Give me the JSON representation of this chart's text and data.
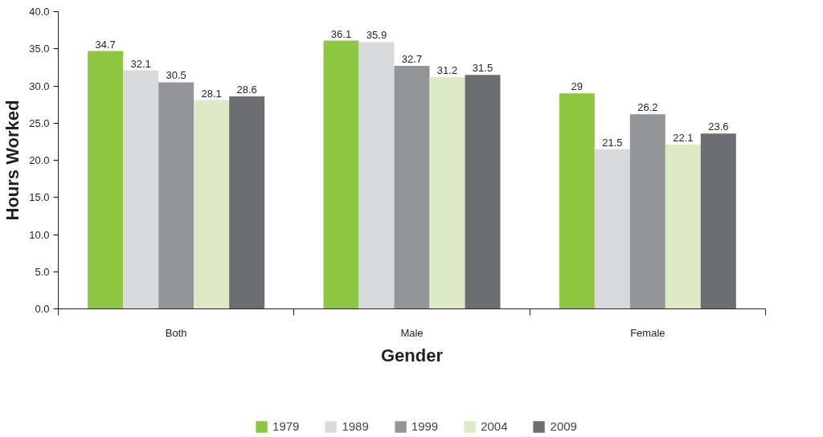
{
  "chart_data": {
    "type": "bar",
    "xlabel": "Gender",
    "ylabel": "Hours Worked",
    "categories": [
      "Both",
      "Male",
      "Female"
    ],
    "series": [
      {
        "name": "1979",
        "color": "#8dc63f",
        "values": [
          34.7,
          36.1,
          29
        ]
      },
      {
        "name": "1989",
        "color": "#d9dadc",
        "values": [
          32.1,
          35.9,
          21.5
        ]
      },
      {
        "name": "1999",
        "color": "#939598",
        "values": [
          30.5,
          32.7,
          26.2
        ]
      },
      {
        "name": "2004",
        "color": "#dcebc5",
        "values": [
          28.1,
          31.2,
          22.1
        ]
      },
      {
        "name": "2009",
        "color": "#6d6e71",
        "values": [
          28.6,
          31.5,
          23.6
        ]
      }
    ],
    "ylim": [
      0,
      40
    ],
    "yticks": [
      {
        "value": 0,
        "label": "0.0"
      },
      {
        "value": 5,
        "label": "5.0"
      },
      {
        "value": 10,
        "label": "10.0"
      },
      {
        "value": 15,
        "label": "15.0"
      },
      {
        "value": 20,
        "label": "20.0"
      },
      {
        "value": 25,
        "label": "25.0"
      },
      {
        "value": 30,
        "label": "30.0"
      },
      {
        "value": 35,
        "label": "35.0"
      },
      {
        "value": 40,
        "label": "40.0"
      }
    ],
    "data_labels": true,
    "grid": false,
    "legend": "bottom"
  }
}
